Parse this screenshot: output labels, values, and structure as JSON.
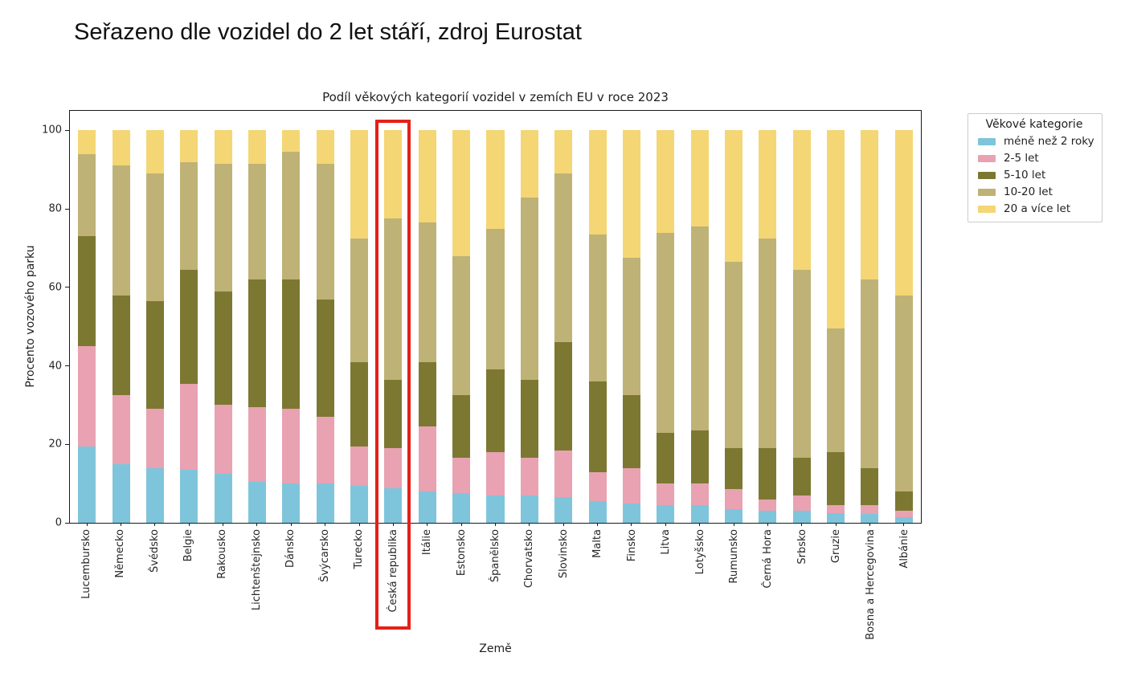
{
  "heading": "Seřazeno dle vozidel do 2 let stáří, zdroj Eurostat",
  "colors": {
    "highlight_box": "#e32119",
    "axis": "#1a1a1a",
    "background": "#ffffff"
  },
  "chart_data": {
    "type": "bar",
    "stacked": true,
    "title": "Podíl věkových kategorií vozidel v zemích EU v roce 2023",
    "xlabel": "Země",
    "ylabel": "Procento vozového parku",
    "ylim": [
      0,
      105
    ],
    "yticks": [
      0,
      20,
      40,
      60,
      80,
      100
    ],
    "grid": false,
    "legend_title": "Věkové kategorie",
    "legend_position": "upper right, outside plot",
    "highlighted_category": "Česká republika",
    "categories": [
      "Lucembursko",
      "Německo",
      "Švédsko",
      "Belgie",
      "Rakousko",
      "Lichtenštejnsko",
      "Dánsko",
      "Švýcarsko",
      "Turecko",
      "Česká republika",
      "Itálie",
      "Estonsko",
      "Španělsko",
      "Chorvatsko",
      "Slovinsko",
      "Malta",
      "Finsko",
      "Litva",
      "Lotyšsko",
      "Rumunsko",
      "Černá Hora",
      "Srbsko",
      "Gruzie",
      "Bosna a Hercegovina",
      "Albánie"
    ],
    "series": [
      {
        "name": "méně než 2 roky",
        "color": "#7ec5dc",
        "values": [
          19.5,
          15,
          14,
          13.5,
          12.5,
          10.5,
          10,
          10,
          9.5,
          8.8,
          8,
          7.5,
          7,
          7,
          6.5,
          5.5,
          5,
          4.5,
          4.5,
          3.5,
          3,
          3,
          2.5,
          2.2,
          1.5
        ]
      },
      {
        "name": "2-5 let",
        "color": "#e8a2b2",
        "values": [
          25.5,
          17.5,
          15,
          22,
          17.5,
          19,
          19,
          17,
          10,
          10.2,
          16.5,
          9,
          11,
          9.5,
          12,
          7.5,
          9,
          5.5,
          5.5,
          5,
          3,
          4,
          2,
          2.3,
          1.5
        ]
      },
      {
        "name": "5-10 let",
        "color": "#7c7832",
        "values": [
          28,
          25.5,
          27.5,
          29,
          29,
          32.5,
          33,
          30,
          21.5,
          17.5,
          16.5,
          16,
          21,
          20,
          27.5,
          23,
          18.5,
          13,
          13.5,
          10.5,
          13,
          9.5,
          13.5,
          9.5,
          5
        ]
      },
      {
        "name": "10-20 let",
        "color": "#bfb276",
        "values": [
          21,
          33,
          32.5,
          27.5,
          32.5,
          29.5,
          32.5,
          34.5,
          31.5,
          41,
          35.5,
          35.5,
          36,
          46.5,
          43,
          37.5,
          35,
          51,
          52,
          47.5,
          53.5,
          48,
          31.5,
          48,
          50
        ]
      },
      {
        "name": "20 a více let",
        "color": "#f4d674",
        "values": [
          6,
          9,
          11,
          8,
          8.5,
          8.5,
          5.5,
          8.5,
          27.5,
          22.5,
          23.5,
          32,
          25,
          17,
          11,
          26.5,
          32.5,
          26,
          24.5,
          33.5,
          27.5,
          35.5,
          50.5,
          38,
          42
        ]
      }
    ]
  }
}
